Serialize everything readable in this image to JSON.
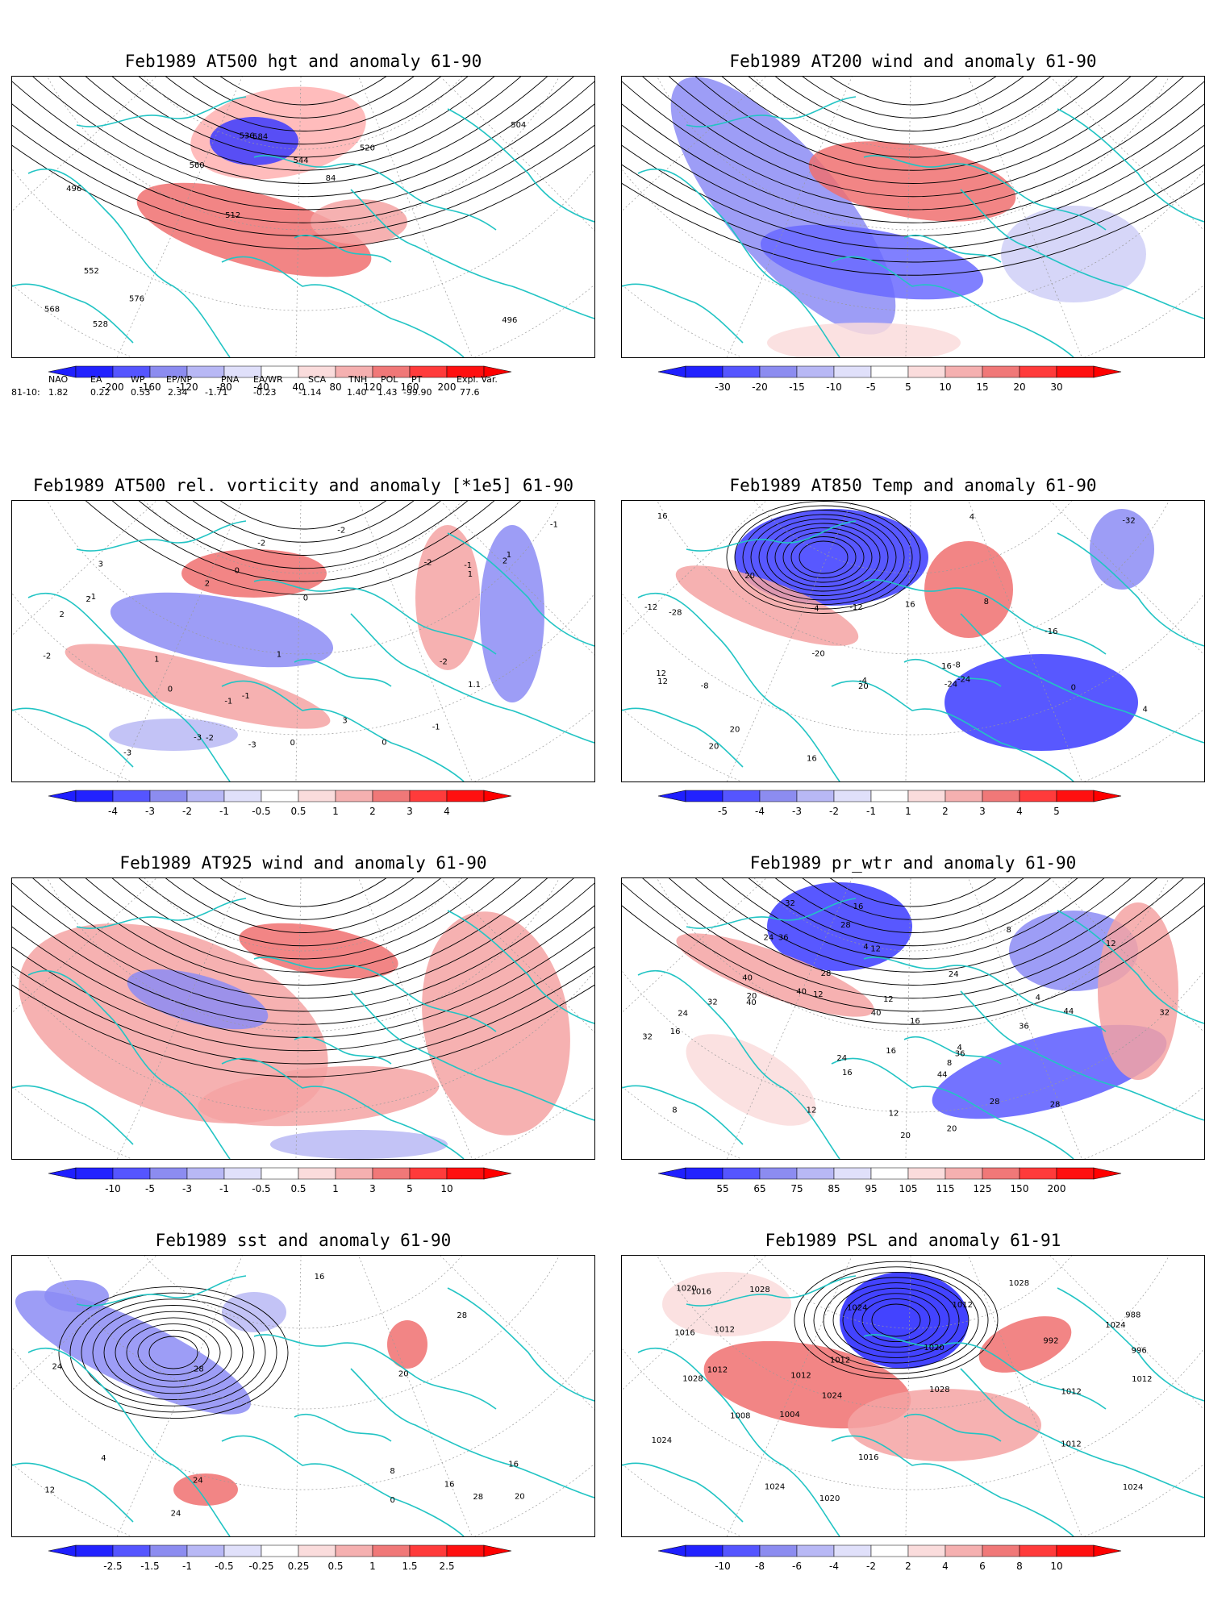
{
  "colors": {
    "neg_strong": "#1f1fff",
    "neg_mid": "#5a5aff",
    "neg_light": "#9b9bf5",
    "neg_pale": "#cfcff7",
    "pos_pale": "#f7d3d3",
    "pos_light": "#f5a3a3",
    "pos_mid": "#f06a6a",
    "pos_strong": "#ff2020",
    "coast": "#22c4c4",
    "contour": "#000000",
    "grid": "#9a9a9a"
  },
  "panels": [
    {
      "id": "p1",
      "title": "Feb1989 AT500 hgt and anomaly 61-90",
      "contour_labels": [
        "496",
        "496",
        "504",
        "512",
        "520",
        "528",
        "536",
        "544",
        "552",
        "560",
        "568",
        "576",
        "584",
        "84"
      ],
      "colorbar": {
        "labels": [
          "-200",
          "-160",
          "-120",
          "-80",
          "-40",
          "40",
          "80",
          "120",
          "160",
          "200"
        ]
      }
    },
    {
      "id": "p2",
      "title": "Feb1989 AT200 wind and anomaly 61-90",
      "contour_labels": [],
      "colorbar": {
        "labels": [
          "-30",
          "-20",
          "-15",
          "-10",
          "-5",
          "5",
          "10",
          "15",
          "20",
          "30"
        ]
      }
    },
    {
      "id": "p3",
      "title": "Feb1989 AT500 rel. vorticity and anomaly [*1e5] 61-90",
      "contour_labels": [
        "-1",
        "-1",
        "-2",
        "-3",
        "-2",
        "-3",
        "-1",
        "1",
        "3",
        "2",
        "3",
        "-2",
        "2",
        "1",
        "-1",
        "0",
        "1",
        "-2",
        "-1",
        "-2",
        "1",
        "0",
        "-3",
        "1.1",
        "0",
        "0",
        "0",
        "2",
        "-2",
        "-1",
        "2"
      ],
      "colorbar": {
        "labels": [
          "-4",
          "-3",
          "-2",
          "-1",
          "-0.5",
          "0.5",
          "1",
          "2",
          "3",
          "4"
        ]
      }
    },
    {
      "id": "p4",
      "title": "Feb1989 AT850 Temp and anomaly 61-90",
      "contour_labels": [
        "-24",
        "-28",
        "-32",
        "-24",
        "-20",
        "-12",
        "-16",
        "-8",
        "-4",
        "16",
        "20",
        "-12",
        "-8",
        "-4",
        "0",
        "4",
        "8",
        "12",
        "16",
        "20",
        "12",
        "16",
        "20",
        "20",
        "16",
        "4"
      ],
      "colorbar": {
        "labels": [
          "-5",
          "-4",
          "-3",
          "-2",
          "-1",
          "1",
          "2",
          "3",
          "4",
          "5"
        ]
      }
    },
    {
      "id": "p5",
      "title": "Feb1989 AT925 wind and anomaly 61-90",
      "contour_labels": [],
      "colorbar": {
        "labels": [
          "-10",
          "-5",
          "-3",
          "-1",
          "-0.5",
          "0.5",
          "1",
          "3",
          "5",
          "10"
        ]
      }
    },
    {
      "id": "p6",
      "title": "Feb1989 pr_wtr and anomaly 61-90",
      "contour_labels": [
        "24",
        "16",
        "20",
        "28",
        "32",
        "24",
        "28",
        "32",
        "44",
        "40",
        "36",
        "44",
        "8",
        "12",
        "20",
        "16",
        "12",
        "8",
        "12",
        "16",
        "12",
        "8",
        "4",
        "4",
        "4",
        "12",
        "24",
        "20",
        "28",
        "32",
        "36",
        "40",
        "40",
        "36",
        "40",
        "12",
        "16",
        "16",
        "32",
        "28",
        "24"
      ],
      "colorbar": {
        "labels": [
          "55",
          "65",
          "75",
          "85",
          "95",
          "105",
          "115",
          "125",
          "150",
          "200"
        ]
      }
    },
    {
      "id": "p7",
      "title": "Feb1989 sst and anomaly 61-90",
      "contour_labels": [
        "28",
        "24",
        "20",
        "16",
        "12",
        "8",
        "4",
        "0",
        "16",
        "20",
        "24",
        "28",
        "28",
        "24",
        "16"
      ],
      "colorbar": {
        "labels": [
          "-2.5",
          "-1.5",
          "-1",
          "-0.5",
          "-0.25",
          "0.25",
          "0.5",
          "1",
          "1.5",
          "2.5"
        ]
      }
    },
    {
      "id": "p8",
      "title": "Feb1989 PSL and anomaly 61-91",
      "contour_labels": [
        "1020",
        "1028",
        "1024",
        "1008",
        "996",
        "992",
        "988",
        "1012",
        "1004",
        "1028",
        "1024",
        "1016",
        "1024",
        "1028",
        "1012",
        "1016",
        "1012",
        "1020",
        "1028",
        "1024",
        "1024",
        "1012",
        "1016",
        "1020",
        "1012",
        "1012",
        "1012",
        "1012",
        "1024"
      ],
      "colorbar": {
        "labels": [
          "-10",
          "-8",
          "-6",
          "-4",
          "-2",
          "2",
          "4",
          "6",
          "8",
          "10"
        ]
      }
    }
  ],
  "index_table": {
    "headers": [
      "NAO",
      "EA",
      "WP",
      "EP/NP",
      "PNA",
      "EA/WR",
      "SCA",
      "TNH",
      "POL",
      "PT",
      "Expl. Var."
    ],
    "row_label": "81-10:",
    "values": [
      "1.82",
      "0.22",
      "0.53",
      "2.34",
      "-1.71",
      "-0.23",
      "-1.14",
      "1.40",
      "1.43",
      "-99.90",
      "77.6"
    ]
  }
}
